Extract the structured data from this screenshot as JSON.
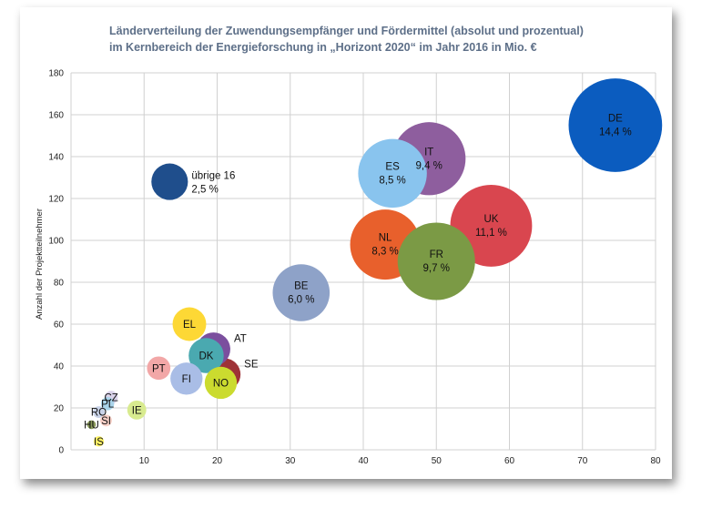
{
  "chart_data": {
    "type": "bubble",
    "title_lines": [
      "Länderverteilung der Zuwendungsempfänger und Fördermittel (absolut und prozentual)",
      "im Kernbereich der Energieforschung in „Horizont 2020“ im Jahr 2016 in Mio. €"
    ],
    "xlabel": "",
    "ylabel": "Anzahl der Projektteilnehmer",
    "xlim": [
      0,
      80
    ],
    "ylim": [
      0,
      180
    ],
    "x_ticks": [
      10,
      20,
      30,
      40,
      50,
      60,
      70,
      80
    ],
    "y_ticks": [
      0,
      20,
      40,
      60,
      80,
      100,
      120,
      140,
      160,
      180
    ],
    "grid": true,
    "points": [
      {
        "label": "übrige 16",
        "pct": "2,5 %",
        "x": 13.5,
        "y": 128,
        "r": 2.5,
        "color": "#1f4e8c",
        "text_color": "#111111",
        "label_outside": true
      },
      {
        "label": "CZ",
        "pct": "",
        "x": 5.5,
        "y": 25,
        "r": 0.9,
        "color": "#d9d2e9",
        "text_color": "#111111"
      },
      {
        "label": "PL",
        "pct": "",
        "x": 5.0,
        "y": 22,
        "r": 0.9,
        "color": "#a9d4ea",
        "text_color": "#111111"
      },
      {
        "label": "RO",
        "pct": "",
        "x": 3.8,
        "y": 18,
        "r": 0.8,
        "color": "#c9d3e8",
        "text_color": "#111111"
      },
      {
        "label": "SI",
        "pct": "",
        "x": 4.8,
        "y": 14,
        "r": 0.8,
        "color": "#f7d0c7",
        "text_color": "#111111"
      },
      {
        "label": "HU",
        "pct": "",
        "x": 2.8,
        "y": 12,
        "r": 0.6,
        "color": "#8a9a5b",
        "text_color": "#111111"
      },
      {
        "label": "IS",
        "pct": "",
        "x": 3.8,
        "y": 4,
        "r": 0.7,
        "color": "#fff467",
        "text_color": "#111111"
      },
      {
        "label": "IE",
        "pct": "",
        "x": 9.0,
        "y": 19,
        "r": 1.3,
        "color": "#d8eb8f",
        "text_color": "#111111"
      },
      {
        "label": "PT",
        "pct": "",
        "x": 12.0,
        "y": 39,
        "r": 1.6,
        "color": "#f2a7a7",
        "text_color": "#111111"
      },
      {
        "label": "SE",
        "pct": "",
        "x": 21.0,
        "y": 36,
        "r": 2.2,
        "color": "#9e3237",
        "text_color": "#111111",
        "label_outside": true
      },
      {
        "label": "AT",
        "pct": "",
        "x": 19.5,
        "y": 48,
        "r": 2.3,
        "color": "#7b4f9e",
        "text_color": "#111111",
        "label_outside": true
      },
      {
        "label": "DK",
        "pct": "",
        "x": 18.5,
        "y": 45,
        "r": 2.4,
        "color": "#4aa9b0",
        "text_color": "#111111"
      },
      {
        "label": "FI",
        "pct": "",
        "x": 15.8,
        "y": 34,
        "r": 2.2,
        "color": "#a9bde6",
        "text_color": "#111111"
      },
      {
        "label": "NO",
        "pct": "",
        "x": 20.5,
        "y": 32,
        "r": 2.2,
        "color": "#cbdb2f",
        "text_color": "#111111"
      },
      {
        "label": "EL",
        "pct": "",
        "x": 16.2,
        "y": 60,
        "r": 2.3,
        "color": "#fdd835",
        "text_color": "#111111"
      },
      {
        "label": "BE",
        "pct": "6,0 %",
        "x": 31.5,
        "y": 75,
        "r": 3.9,
        "color": "#8ea2c8",
        "text_color": "#111111"
      },
      {
        "label": "IT",
        "pct": "9,4 %",
        "x": 49.0,
        "y": 139,
        "r": 5.0,
        "color": "#8e5e9e",
        "text_color": "#111111"
      },
      {
        "label": "ES",
        "pct": "8,5 %",
        "x": 44.0,
        "y": 132,
        "r": 4.7,
        "color": "#89c4ee",
        "text_color": "#111111"
      },
      {
        "label": "DE",
        "pct": "14,4 %",
        "x": 74.5,
        "y": 155,
        "r": 6.4,
        "color": "#0b5cbf",
        "text_color": "#111111"
      },
      {
        "label": "UK",
        "pct": "11,1 %",
        "x": 57.5,
        "y": 107,
        "r": 5.6,
        "color": "#d9464f",
        "text_color": "#111111"
      },
      {
        "label": "NL",
        "pct": "8,3 %",
        "x": 43.0,
        "y": 98,
        "r": 4.8,
        "color": "#e8602c",
        "text_color": "#111111"
      },
      {
        "label": "FR",
        "pct": "9,7 %",
        "x": 50.0,
        "y": 90,
        "r": 5.3,
        "color": "#7b9a45",
        "text_color": "#111111"
      }
    ]
  }
}
